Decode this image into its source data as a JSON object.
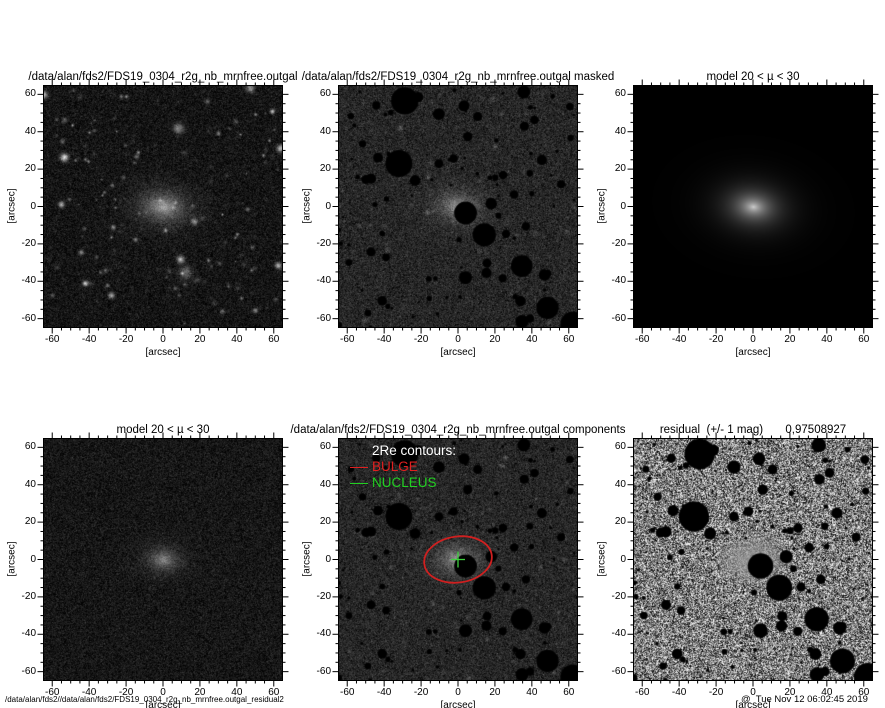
{
  "axis": {
    "label": "[arcsec]",
    "ticks": [
      -60,
      -40,
      -20,
      0,
      20,
      40,
      60
    ],
    "range": [
      -65,
      65
    ],
    "minor_step": 5
  },
  "legend": {
    "title": "2Re contours:",
    "items": [
      {
        "label": "BULGE",
        "color": "#e02020"
      },
      {
        "label": "NUCLEUS",
        "color": "#22d022"
      }
    ]
  },
  "colors": {
    "bulge_contour": "#d02020",
    "nucleus_marker": "#3ed03e",
    "background": "#ffffff",
    "frame": "#000000"
  },
  "footer": {
    "left": "/data/alan/fds2//data/alan/fds2/FDS19_0304_r2g_nb_mrnfree.outgal_residual2",
    "right": "@  Tue Nov 12 06:02:45 2019"
  },
  "panels": [
    {
      "id": "image",
      "title": "/data/alan/fds2/FDS19_0304_r2g_nb_mrnfree.outgal",
      "type": "galaxy"
    },
    {
      "id": "masked",
      "title": "/data/alan/fds2/FDS19_0304_r2g_nb_mrnfree.outgal masked",
      "type": "masked"
    },
    {
      "id": "model",
      "title": "model 20 < µ < 30",
      "type": "model"
    },
    {
      "id": "model-noise",
      "title": "model 20 < µ < 30",
      "type": "model_noise"
    },
    {
      "id": "components",
      "title": "/data/alan/fds2/FDS19_0304_r2g_nb_mrnfree.outgal components",
      "type": "components"
    },
    {
      "id": "residual",
      "title": "residual  (+/- 1 mag)       0,97508927",
      "type": "residual"
    }
  ],
  "chart_data": [
    {
      "type": "heatmap",
      "title": "/data/alan/fds2/FDS19_0304_r2g_nb_mrnfree.outgal",
      "xlabel": "[arcsec]",
      "ylabel": "[arcsec]",
      "xlim": [
        -65,
        65
      ],
      "ylim": [
        -65,
        65
      ],
      "description": "grayscale galaxy image: diffuse elliptical galaxy at (0,0) with field stars"
    },
    {
      "type": "heatmap",
      "title": "/data/alan/fds2/FDS19_0304_r2g_nb_mrnfree.outgal masked",
      "xlabel": "[arcsec]",
      "ylabel": "[arcsec]",
      "xlim": [
        -65,
        65
      ],
      "ylim": [
        -65,
        65
      ],
      "description": "same image with sources masked as black blobs"
    },
    {
      "type": "heatmap",
      "title": "model 20 < µ < 30",
      "xlabel": "[arcsec]",
      "ylabel": "[arcsec]",
      "xlim": [
        -65,
        65
      ],
      "ylim": [
        -65,
        65
      ],
      "description": "smooth elliptical model on black background"
    },
    {
      "type": "heatmap",
      "title": "model 20 < µ < 30",
      "xlabel": "[arcsec]",
      "ylabel": "[arcsec]",
      "xlim": [
        -65,
        65
      ],
      "ylim": [
        -65,
        65
      ],
      "description": "model with noise"
    },
    {
      "type": "heatmap",
      "title": "/data/alan/fds2/FDS19_0304_r2g_nb_mrnfree.outgal components",
      "xlabel": "[arcsec]",
      "ylabel": "[arcsec]",
      "xlim": [
        -65,
        65
      ],
      "ylim": [
        -65,
        65
      ],
      "annotations": [
        "2Re contours:",
        "BULGE (red ellipse, semi-axes ~18x12 arcsec at center)",
        "NUCLEUS (green cross at center)"
      ]
    },
    {
      "type": "heatmap",
      "title": "residual  (+/- 1 mag)       0,97508927",
      "xlabel": "[arcsec]",
      "ylabel": "[arcsec]",
      "xlim": [
        -65,
        65
      ],
      "ylim": [
        -65,
        65
      ],
      "description": "high-contrast residual noise with masked black blobs and smooth central remnant"
    }
  ]
}
